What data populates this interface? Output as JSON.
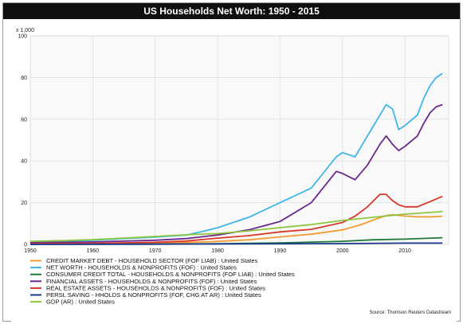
{
  "title": "US Households Net Worth: 1950 - 2015",
  "source": "Source: Thomson Reuters Datastream",
  "chart_data": {
    "type": "line",
    "title": "US Households Net Worth: 1950 - 2015",
    "y_unit_label": "x 1,000",
    "xlim": [
      1950,
      2017
    ],
    "ylim": [
      0,
      100
    ],
    "x_ticks": [
      "1950",
      "1960",
      "1970",
      "1980",
      "1990",
      "2000",
      "2010"
    ],
    "y_ticks": [
      "0",
      "20",
      "40",
      "60",
      "80",
      "100"
    ],
    "grid": true,
    "legend_position": "bottom",
    "series": [
      {
        "name": "CREDIT MARKET DEBT - HOUSEHOLD SECTOR (FOF LIAB) : United States",
        "color": "#f39c35",
        "x": [
          1950,
          1955,
          1960,
          1965,
          1970,
          1975,
          1980,
          1985,
          1990,
          1995,
          2000,
          2003,
          2005,
          2007,
          2008,
          2010,
          2012,
          2014,
          2016
        ],
        "y": [
          0.1,
          0.2,
          0.3,
          0.4,
          0.6,
          0.9,
          1.4,
          2.2,
          3.6,
          4.9,
          7.0,
          9.5,
          11.8,
          13.8,
          14.2,
          13.6,
          13.2,
          13.2,
          13.5
        ]
      },
      {
        "name": "NET WORTH - HOUSEHOLDS & NONPROFITS (FOF) : United States",
        "color": "#3fb6e8",
        "x": [
          1950,
          1955,
          1960,
          1965,
          1970,
          1975,
          1978,
          1980,
          1985,
          1990,
          1995,
          1999,
          2000,
          2002,
          2004,
          2006,
          2007,
          2008,
          2009,
          2010,
          2012,
          2013,
          2014,
          2015,
          2016
        ],
        "y": [
          1.0,
          1.5,
          2.0,
          2.8,
          3.5,
          4.5,
          6.5,
          8.0,
          13.0,
          20.0,
          27.0,
          42.0,
          44.0,
          42.0,
          52.0,
          62.0,
          67.0,
          65.0,
          55.0,
          57.0,
          62.0,
          70.0,
          76.0,
          80.0,
          82.0
        ]
      },
      {
        "name": "CONSUMER CREDIT TOTAL - HOUSEHOLDS & NONPROFITS (FOF LIAB) : United States",
        "color": "#1f7a3a",
        "x": [
          1950,
          1960,
          1970,
          1980,
          1990,
          2000,
          2005,
          2010,
          2016
        ],
        "y": [
          0.0,
          0.1,
          0.1,
          0.3,
          0.7,
          1.5,
          2.2,
          2.5,
          3.2
        ]
      },
      {
        "name": "FINANCIAL ASSETS - HOUSEHOLDS & NONPROFITS (FOF) : United States",
        "color": "#6a2a8c",
        "x": [
          1950,
          1960,
          1970,
          1975,
          1980,
          1985,
          1990,
          1995,
          1999,
          2000,
          2002,
          2004,
          2006,
          2007,
          2008,
          2009,
          2010,
          2012,
          2013,
          2014,
          2015,
          2016
        ],
        "y": [
          0.8,
          1.2,
          2.0,
          2.8,
          4.5,
          7.0,
          11.0,
          20.0,
          35.0,
          34.0,
          31.0,
          38.0,
          48.0,
          52.0,
          48.0,
          45.0,
          47.0,
          52.0,
          58.0,
          63.0,
          66.0,
          67.0
        ]
      },
      {
        "name": "REAL ESTATE ASSETS - HOUSEHOLDS & NONPROFITS (FOF) : United States",
        "color": "#d8382a",
        "x": [
          1950,
          1960,
          1970,
          1975,
          1980,
          1985,
          1990,
          1995,
          2000,
          2002,
          2004,
          2006,
          2007,
          2008,
          2009,
          2010,
          2012,
          2014,
          2016
        ],
        "y": [
          0.3,
          0.5,
          1.0,
          1.6,
          3.0,
          4.2,
          6.0,
          7.2,
          10.5,
          13.5,
          18.0,
          24.0,
          24.0,
          21.0,
          19.0,
          18.0,
          18.0,
          20.5,
          23.0
        ]
      },
      {
        "name": "PERSL SAVING - HHOLDS & NONPROFITS (FOF, CHG AT AR) : United States",
        "color": "#1b3a8c",
        "x": [
          1950,
          1970,
          1990,
          2000,
          2010,
          2014,
          2016
        ],
        "y": [
          0.0,
          0.1,
          0.3,
          0.4,
          0.6,
          0.6,
          0.6
        ]
      },
      {
        "name": "GDP (AR) : United States",
        "color": "#8cc63f",
        "x": [
          1950,
          1955,
          1960,
          1965,
          1970,
          1975,
          1980,
          1985,
          1990,
          1995,
          2000,
          2005,
          2010,
          2015,
          2016
        ],
        "y": [
          1.5,
          1.8,
          2.3,
          3.0,
          3.8,
          4.6,
          5.2,
          6.5,
          8.0,
          9.5,
          11.5,
          13.0,
          14.5,
          15.5,
          15.8
        ]
      }
    ]
  }
}
